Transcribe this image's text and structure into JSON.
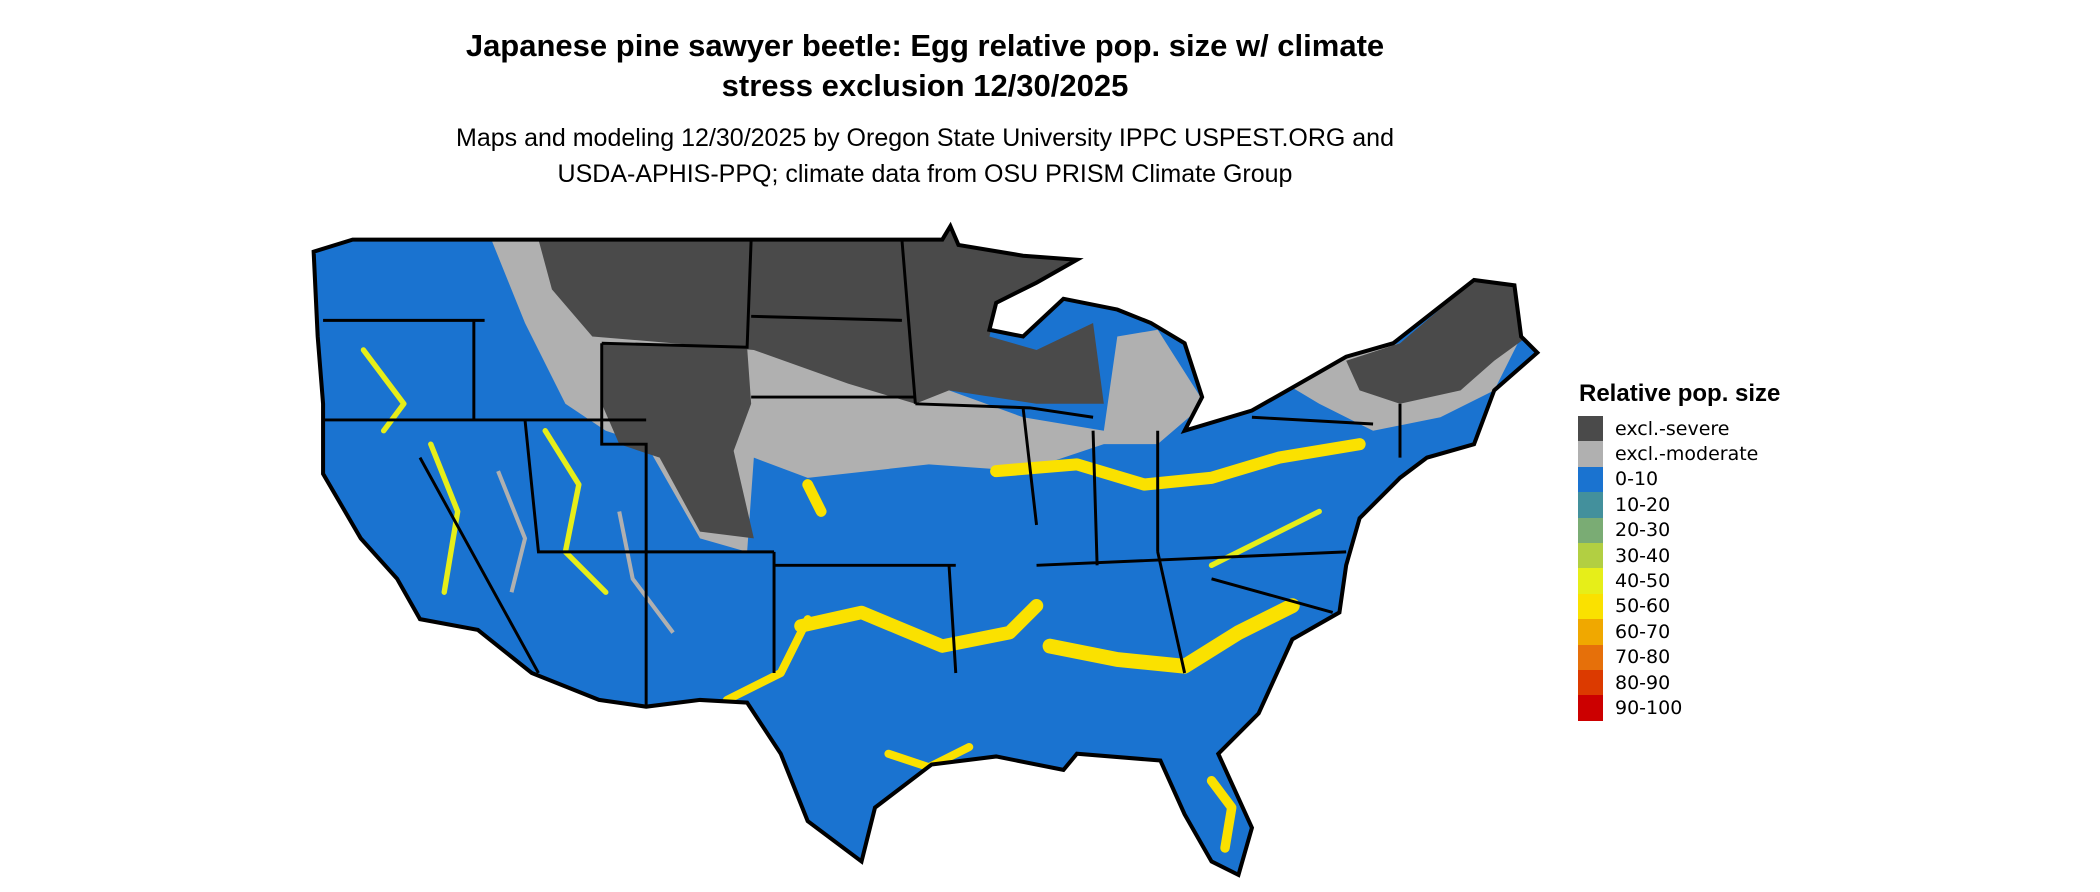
{
  "title": {
    "line1": "Japanese pine sawyer beetle: Egg relative pop. size w/ climate",
    "line2": "stress exclusion 12/30/2025"
  },
  "subtitle": {
    "line1": "Maps and modeling 12/30/2025 by Oregon State University IPPC USPEST.ORG and",
    "line2": "USDA-APHIS-PPQ; climate data from OSU PRISM Climate Group"
  },
  "map": {
    "region": "Contiguous United States",
    "colors": {
      "background_fill": "#1a73d0",
      "border": "#000000"
    }
  },
  "legend": {
    "title": "Relative pop. size",
    "items": [
      {
        "label": "excl.-severe",
        "color": "#4a4a4a"
      },
      {
        "label": "excl.-moderate",
        "color": "#b0b0b0"
      },
      {
        "label": "0-10",
        "color": "#1a73d0"
      },
      {
        "label": "10-20",
        "color": "#43909c"
      },
      {
        "label": "20-30",
        "color": "#7aac74"
      },
      {
        "label": "30-40",
        "color": "#b2cf42"
      },
      {
        "label": "40-50",
        "color": "#e6ee19"
      },
      {
        "label": "50-60",
        "color": "#fae100"
      },
      {
        "label": "60-70",
        "color": "#f0a800"
      },
      {
        "label": "70-80",
        "color": "#e6700a"
      },
      {
        "label": "80-90",
        "color": "#dc3a00"
      },
      {
        "label": "90-100",
        "color": "#cc0000"
      }
    ]
  }
}
